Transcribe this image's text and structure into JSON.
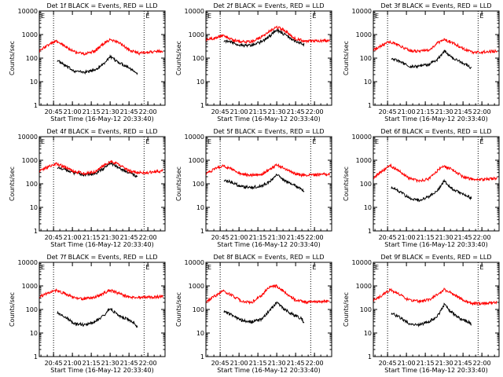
{
  "figure": {
    "ylabel": "Counts/sec",
    "xlabel": "Start Time (16-May-12 20:33:40)",
    "xticks": [
      "20:45",
      "21:00",
      "21:15",
      "21:30",
      "21:45",
      "22:00"
    ],
    "yticks": [
      "1",
      "10",
      "100",
      "1000",
      "10000"
    ],
    "marker": "E",
    "colors": {
      "events": "#000000",
      "lld": "#ff0000",
      "axes": "#000000"
    }
  },
  "chart_data": [
    {
      "type": "line",
      "title": "Det 1f BLACK = Events, RED = LLD",
      "xlabel": "Start Time (16-May-12 20:33:40)",
      "ylabel": "Counts/sec",
      "ylog": true,
      "ylim": [
        1,
        10000
      ],
      "xlim": [
        "20:33:40",
        "22:13:40"
      ],
      "vlines": [
        "20:45",
        "21:57"
      ],
      "series": [
        {
          "name": "Events",
          "color": "#000000",
          "x": [
            "20:48",
            "20:55",
            "21:02",
            "21:10",
            "21:18",
            "21:25",
            "21:30",
            "21:36",
            "21:43",
            "21:50",
            "21:52"
          ],
          "y": [
            80,
            45,
            28,
            25,
            32,
            60,
            110,
            70,
            45,
            28,
            20
          ]
        },
        {
          "name": "LLD",
          "color": "#ff0000",
          "x": [
            "20:34",
            "20:40",
            "20:47",
            "20:55",
            "21:02",
            "21:10",
            "21:18",
            "21:25",
            "21:30",
            "21:37",
            "21:45",
            "21:53",
            "22:00",
            "22:12"
          ],
          "y": [
            200,
            350,
            520,
            300,
            180,
            150,
            200,
            420,
            600,
            450,
            220,
            160,
            180,
            200
          ]
        }
      ]
    },
    {
      "type": "line",
      "title": "Det 2f BLACK = Events, RED = LLD",
      "xlabel": "Start Time (16-May-12 20:33:40)",
      "ylabel": "Counts/sec",
      "ylog": true,
      "ylim": [
        1,
        10000
      ],
      "xlim": [
        "20:33:40",
        "22:13:40"
      ],
      "vlines": [
        "20:45",
        "21:57"
      ],
      "series": [
        {
          "name": "Events",
          "color": "#000000",
          "x": [
            "20:48",
            "20:55",
            "21:02",
            "21:10",
            "21:18",
            "21:25",
            "21:30",
            "21:36",
            "21:43",
            "21:50",
            "21:52"
          ],
          "y": [
            550,
            450,
            350,
            350,
            500,
            900,
            1600,
            1000,
            600,
            420,
            380
          ]
        },
        {
          "name": "LLD",
          "color": "#ff0000",
          "x": [
            "20:34",
            "20:40",
            "20:47",
            "20:55",
            "21:02",
            "21:10",
            "21:18",
            "21:25",
            "21:30",
            "21:37",
            "21:45",
            "21:53",
            "22:00",
            "22:12"
          ],
          "y": [
            600,
            700,
            900,
            600,
            500,
            500,
            800,
            1500,
            2100,
            1400,
            650,
            520,
            520,
            560
          ]
        }
      ]
    },
    {
      "type": "line",
      "title": "Det 3f BLACK = Events, RED = LLD",
      "xlabel": "Start Time (16-May-12 20:33:40)",
      "ylabel": "Counts/sec",
      "ylog": true,
      "ylim": [
        1,
        10000
      ],
      "xlim": [
        "20:33:40",
        "22:13:40"
      ],
      "vlines": [
        "20:45",
        "21:57"
      ],
      "series": [
        {
          "name": "Events",
          "color": "#000000",
          "x": [
            "20:48",
            "20:55",
            "21:02",
            "21:10",
            "21:18",
            "21:25",
            "21:30",
            "21:36",
            "21:43",
            "21:50",
            "21:52"
          ],
          "y": [
            100,
            70,
            45,
            45,
            55,
            90,
            200,
            110,
            70,
            45,
            35
          ]
        },
        {
          "name": "LLD",
          "color": "#ff0000",
          "x": [
            "20:34",
            "20:40",
            "20:47",
            "20:55",
            "21:02",
            "21:10",
            "21:18",
            "21:25",
            "21:30",
            "21:37",
            "21:45",
            "21:53",
            "22:00",
            "22:12"
          ],
          "y": [
            230,
            350,
            500,
            320,
            220,
            190,
            220,
            450,
            600,
            450,
            250,
            180,
            180,
            200
          ]
        }
      ]
    },
    {
      "type": "line",
      "title": "Det 4f BLACK = Events, RED = LLD",
      "xlabel": "Start Time (16-May-12 20:33:40)",
      "ylabel": "Counts/sec",
      "ylog": true,
      "ylim": [
        1,
        10000
      ],
      "xlim": [
        "20:33:40",
        "22:13:40"
      ],
      "vlines": [
        "20:45",
        "21:57"
      ],
      "series": [
        {
          "name": "Events",
          "color": "#000000",
          "x": [
            "20:48",
            "20:55",
            "21:02",
            "21:10",
            "21:18",
            "21:25",
            "21:30",
            "21:36",
            "21:43",
            "21:50",
            "21:52"
          ],
          "y": [
            500,
            400,
            280,
            240,
            260,
            450,
            800,
            500,
            320,
            220,
            200
          ]
        },
        {
          "name": "LLD",
          "color": "#ff0000",
          "x": [
            "20:34",
            "20:40",
            "20:47",
            "20:55",
            "21:02",
            "21:10",
            "21:18",
            "21:25",
            "21:30",
            "21:37",
            "21:45",
            "21:53",
            "22:00",
            "22:12"
          ],
          "y": [
            350,
            500,
            700,
            500,
            320,
            280,
            320,
            600,
            900,
            650,
            350,
            300,
            300,
            350
          ]
        }
      ]
    },
    {
      "type": "line",
      "title": "Det 5f BLACK = Events, RED = LLD",
      "xlabel": "Start Time (16-May-12 20:33:40)",
      "ylabel": "Counts/sec",
      "ylog": true,
      "ylim": [
        1,
        10000
      ],
      "xlim": [
        "20:33:40",
        "22:13:40"
      ],
      "vlines": [
        "20:45",
        "21:57"
      ],
      "series": [
        {
          "name": "Events",
          "color": "#000000",
          "x": [
            "20:48",
            "20:55",
            "21:02",
            "21:10",
            "21:18",
            "21:25",
            "21:30",
            "21:36",
            "21:43",
            "21:50",
            "21:52"
          ],
          "y": [
            150,
            110,
            75,
            70,
            80,
            130,
            250,
            140,
            90,
            60,
            45
          ]
        },
        {
          "name": "LLD",
          "color": "#ff0000",
          "x": [
            "20:34",
            "20:40",
            "20:47",
            "20:55",
            "21:02",
            "21:10",
            "21:18",
            "21:25",
            "21:30",
            "21:37",
            "21:45",
            "21:53",
            "22:00",
            "22:12"
          ],
          "y": [
            280,
            400,
            600,
            400,
            260,
            230,
            260,
            420,
            650,
            420,
            260,
            220,
            240,
            260
          ]
        }
      ]
    },
    {
      "type": "line",
      "title": "Det 6f BLACK = Events, RED = LLD",
      "xlabel": "Start Time (16-May-12 20:33:40)",
      "ylabel": "Counts/sec",
      "ylog": true,
      "ylim": [
        1,
        10000
      ],
      "xlim": [
        "20:33:40",
        "22:13:40"
      ],
      "vlines": [
        "20:45",
        "21:57"
      ],
      "series": [
        {
          "name": "Events",
          "color": "#000000",
          "x": [
            "20:48",
            "20:55",
            "21:02",
            "21:10",
            "21:18",
            "21:25",
            "21:30",
            "21:36",
            "21:43",
            "21:50",
            "21:52"
          ],
          "y": [
            70,
            45,
            25,
            20,
            28,
            55,
            130,
            65,
            40,
            28,
            22
          ]
        },
        {
          "name": "LLD",
          "color": "#ff0000",
          "x": [
            "20:34",
            "20:40",
            "20:47",
            "20:55",
            "21:02",
            "21:10",
            "21:18",
            "21:25",
            "21:30",
            "21:37",
            "21:45",
            "21:53",
            "22:00",
            "22:12"
          ],
          "y": [
            180,
            320,
            600,
            320,
            170,
            130,
            160,
            380,
            550,
            380,
            200,
            150,
            150,
            170
          ]
        }
      ]
    },
    {
      "type": "line",
      "title": "Det 7f BLACK = Events, RED = LLD",
      "xlabel": "Start Time (16-May-12 20:33:40)",
      "ylabel": "Counts/sec",
      "ylog": true,
      "ylim": [
        1,
        10000
      ],
      "xlim": [
        "20:33:40",
        "22:13:40"
      ],
      "vlines": [
        "20:45",
        "21:57"
      ],
      "series": [
        {
          "name": "Events",
          "color": "#000000",
          "x": [
            "20:48",
            "20:55",
            "21:02",
            "21:10",
            "21:18",
            "21:25",
            "21:30",
            "21:36",
            "21:43",
            "21:50",
            "21:52"
          ],
          "y": [
            75,
            45,
            25,
            22,
            30,
            55,
            110,
            60,
            40,
            25,
            16
          ]
        },
        {
          "name": "LLD",
          "color": "#ff0000",
          "x": [
            "20:34",
            "20:40",
            "20:47",
            "20:55",
            "21:02",
            "21:10",
            "21:18",
            "21:25",
            "21:30",
            "21:37",
            "21:45",
            "21:53",
            "22:00",
            "22:12"
          ],
          "y": [
            350,
            480,
            650,
            450,
            300,
            280,
            330,
            500,
            650,
            480,
            330,
            320,
            330,
            350
          ]
        }
      ]
    },
    {
      "type": "line",
      "title": "Det 8f BLACK = Events, RED = LLD",
      "xlabel": "Start Time (16-May-12 20:33:40)",
      "ylabel": "Counts/sec",
      "ylog": true,
      "ylim": [
        1,
        10000
      ],
      "xlim": [
        "20:33:40",
        "22:13:40"
      ],
      "vlines": [
        "20:45",
        "21:57"
      ],
      "series": [
        {
          "name": "Events",
          "color": "#000000",
          "x": [
            "20:48",
            "20:55",
            "21:02",
            "21:10",
            "21:18",
            "21:25",
            "21:30",
            "21:36",
            "21:43",
            "21:50",
            "21:52"
          ],
          "y": [
            85,
            55,
            35,
            30,
            38,
            100,
            200,
            100,
            60,
            40,
            25
          ]
        },
        {
          "name": "LLD",
          "color": "#ff0000",
          "x": [
            "20:34",
            "20:40",
            "20:47",
            "20:55",
            "21:02",
            "21:10",
            "21:18",
            "21:25",
            "21:30",
            "21:37",
            "21:45",
            "21:53",
            "22:00",
            "22:12"
          ],
          "y": [
            220,
            350,
            600,
            380,
            230,
            200,
            400,
            1000,
            1000,
            500,
            250,
            200,
            210,
            230
          ]
        }
      ]
    },
    {
      "type": "line",
      "title": "Det 9f BLACK = Events, RED = LLD",
      "xlabel": "Start Time (16-May-12 20:33:40)",
      "ylabel": "Counts/sec",
      "ylog": true,
      "ylim": [
        1,
        10000
      ],
      "xlim": [
        "20:33:40",
        "22:13:40"
      ],
      "vlines": [
        "20:45",
        "21:57"
      ],
      "series": [
        {
          "name": "Events",
          "color": "#000000",
          "x": [
            "20:48",
            "20:55",
            "21:02",
            "21:10",
            "21:18",
            "21:25",
            "21:30",
            "21:36",
            "21:43",
            "21:50",
            "21:52"
          ],
          "y": [
            70,
            45,
            25,
            22,
            30,
            55,
            160,
            75,
            40,
            28,
            22
          ]
        },
        {
          "name": "LLD",
          "color": "#ff0000",
          "x": [
            "20:34",
            "20:40",
            "20:47",
            "20:55",
            "21:02",
            "21:10",
            "21:18",
            "21:25",
            "21:30",
            "21:37",
            "21:45",
            "21:53",
            "22:00",
            "22:12"
          ],
          "y": [
            250,
            380,
            700,
            420,
            250,
            220,
            260,
            450,
            700,
            450,
            250,
            180,
            180,
            200
          ]
        }
      ]
    }
  ]
}
